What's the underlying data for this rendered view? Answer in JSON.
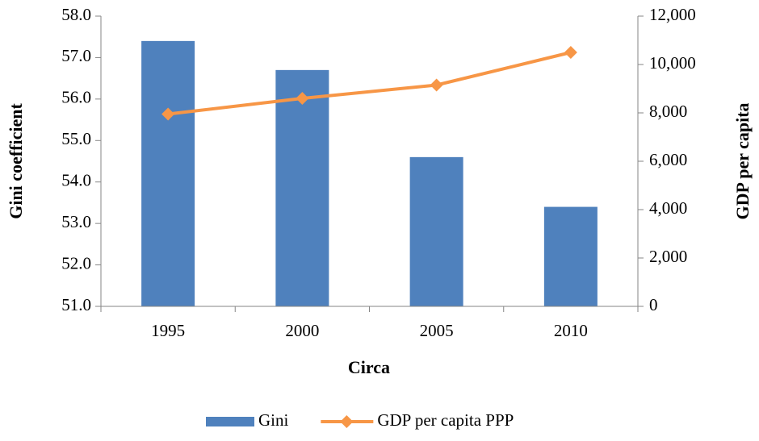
{
  "chart_data": {
    "type": "bar-line",
    "x_label": "Circa",
    "y_label": "Gini coefficient",
    "y2_label": "GDP per capita",
    "categories": [
      "1995",
      "2000",
      "2005",
      "2010"
    ],
    "series": [
      {
        "name": "Gini",
        "type": "bar",
        "color": "#4f81bd",
        "values": [
          57.4,
          56.7,
          54.6,
          53.4
        ]
      },
      {
        "name": "GDP per capita PPP",
        "type": "line",
        "color": "#f79646",
        "axis": "y2",
        "values": [
          7950,
          8600,
          9150,
          10500
        ]
      }
    ],
    "ylim": [
      51,
      58
    ],
    "yticks": [
      {
        "value": 51,
        "label": "51.0"
      },
      {
        "value": 52,
        "label": "52.0"
      },
      {
        "value": 53,
        "label": "53.0"
      },
      {
        "value": 54,
        "label": "54.0"
      },
      {
        "value": 55,
        "label": "55.0"
      },
      {
        "value": 56,
        "label": "56.0"
      },
      {
        "value": 57,
        "label": "57.0"
      },
      {
        "value": 58,
        "label": "58.0"
      }
    ],
    "y2lim": [
      0,
      12000
    ],
    "y2ticks": [
      0,
      {
        "value": 2000,
        "label": "2,000"
      },
      {
        "value": 4000,
        "label": "4,000"
      },
      {
        "value": 6000,
        "label": "6,000"
      },
      {
        "value": 8000,
        "label": "8,000"
      },
      {
        "value": 10000,
        "label": "10,000"
      },
      {
        "value": 12000,
        "label": "12,000"
      }
    ],
    "legend": "bottom"
  }
}
